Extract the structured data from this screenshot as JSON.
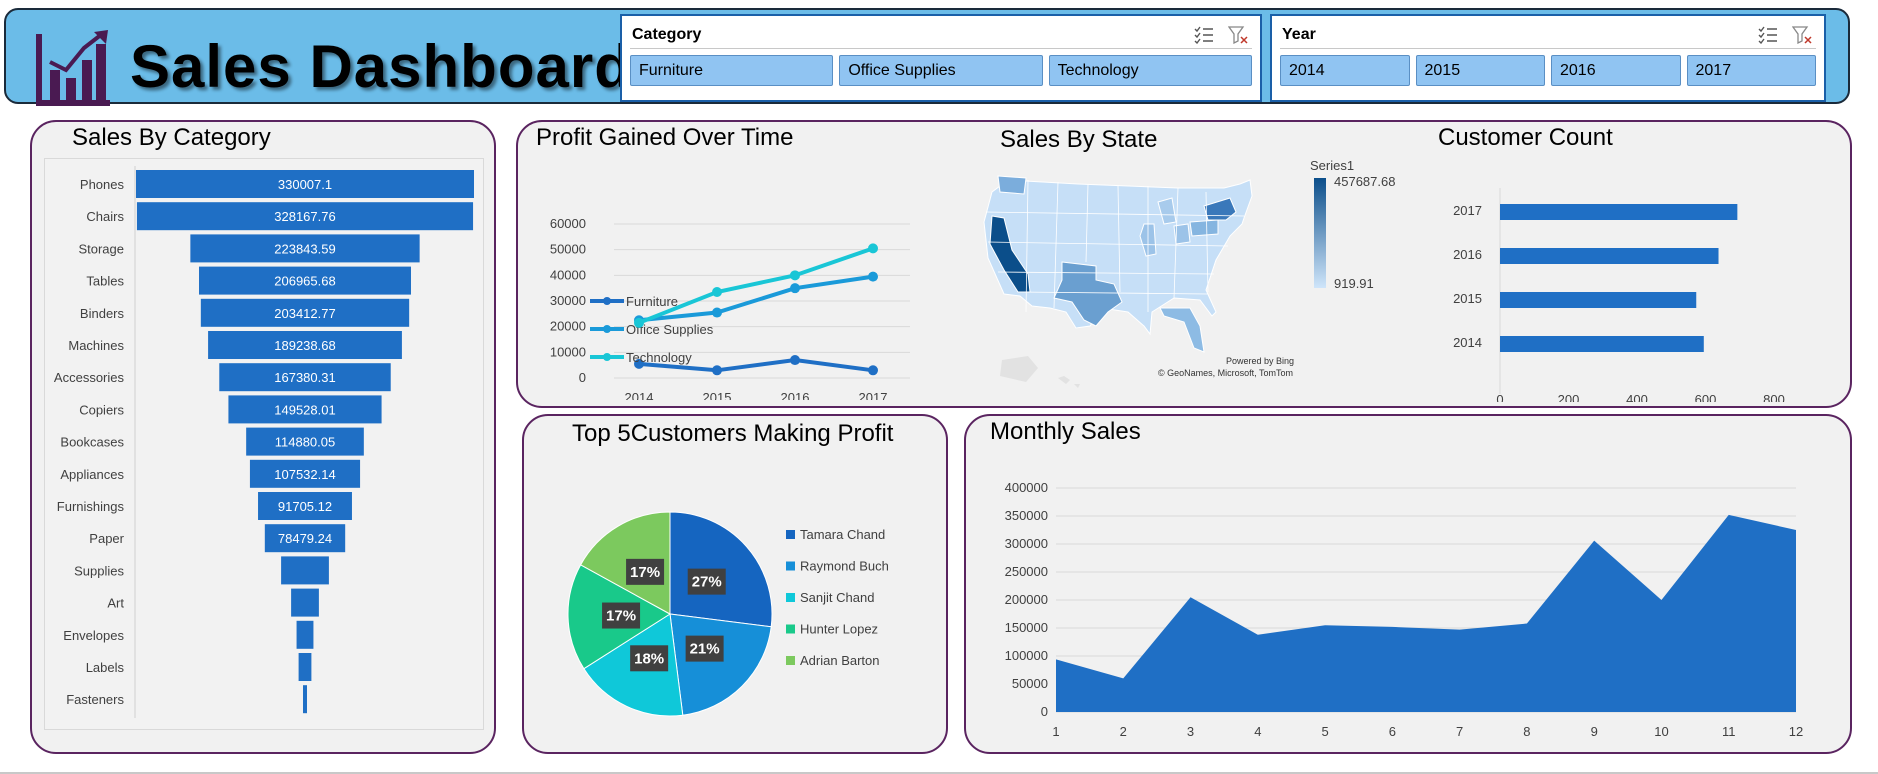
{
  "header": {
    "title": "Sales Dashboard"
  },
  "slicers": {
    "category": {
      "title": "Category",
      "items": [
        "Furniture",
        "Office Supplies",
        "Technology"
      ]
    },
    "year": {
      "title": "Year",
      "items": [
        "2014",
        "2015",
        "2016",
        "2017"
      ]
    }
  },
  "colors": {
    "primary": "#1f6fc5",
    "banner": "#6bbce8",
    "panel_border": "#5a2460",
    "slicer_item": "#90c4f2"
  },
  "map": {
    "legend_title": "Series1",
    "max_label": "457687.68",
    "min_label": "919.91",
    "credit_line1": "Powered by Bing",
    "credit_line2": "© GeoNames, Microsoft, TomTom"
  },
  "chart_data": [
    {
      "type": "bar",
      "id": "sales_by_category",
      "title": "Sales By Category",
      "orientation": "horizontal-funnel",
      "categories": [
        "Phones",
        "Chairs",
        "Storage",
        "Tables",
        "Binders",
        "Machines",
        "Accessories",
        "Copiers",
        "Bookcases",
        "Appliances",
        "Furnishings",
        "Paper",
        "Supplies",
        "Art",
        "Envelopes",
        "Labels",
        "Fasteners"
      ],
      "values": [
        330007.1,
        328167.76,
        223843.59,
        206965.68,
        203412.77,
        189238.68,
        167380.31,
        149528.01,
        114880.05,
        107532.14,
        91705.12,
        78479.24,
        46673.54,
        27118.79,
        16476.4,
        12486.31,
        3024.28
      ],
      "data_labels": [
        "330007.1",
        "328167.76",
        "223843.59",
        "206965.68",
        "203412.77",
        "189238.68",
        "167380.31",
        "149528.01",
        "114880.05",
        "107532.14",
        "91705.12",
        "78479.24",
        "",
        "",
        "",
        "",
        ""
      ]
    },
    {
      "type": "line",
      "id": "profit_over_time",
      "title": "Profit Gained Over Time",
      "x": [
        "2014",
        "2015",
        "2016",
        "2017"
      ],
      "series": [
        {
          "name": "Furniture",
          "values": [
            5500,
            3000,
            7000,
            3000
          ],
          "color": "#1f6fc5"
        },
        {
          "name": "Office Supplies",
          "values": [
            22500,
            25500,
            35000,
            39500
          ],
          "color": "#1a9ad9"
        },
        {
          "name": "Technology",
          "values": [
            21500,
            33500,
            40000,
            50500
          ],
          "color": "#19c6d6"
        }
      ],
      "ylim": [
        0,
        60000
      ],
      "yticks": [
        "0",
        "10000",
        "20000",
        "30000",
        "40000",
        "50000",
        "60000"
      ]
    },
    {
      "type": "map",
      "id": "sales_by_state",
      "title": "Sales By State"
    },
    {
      "type": "bar",
      "id": "customer_count",
      "title": "Customer Count",
      "orientation": "horizontal",
      "categories": [
        "2017",
        "2016",
        "2015",
        "2014"
      ],
      "values": [
        693,
        638,
        573,
        595
      ],
      "xlim": [
        0,
        800
      ],
      "xticks": [
        "0",
        "200",
        "400",
        "600",
        "800"
      ]
    },
    {
      "type": "pie",
      "id": "top_customers",
      "title": "Top 5Customers Making Profit",
      "labels": [
        "Tamara Chand",
        "Raymond Buch",
        "Sanjit Chand",
        "Hunter Lopez",
        "Adrian Barton"
      ],
      "values": [
        27,
        21,
        18,
        17,
        17
      ],
      "data_labels": [
        "27%",
        "21%",
        "18%",
        "17%",
        "17%"
      ],
      "colors": [
        "#1565c0",
        "#168fd8",
        "#0fc8d9",
        "#19c98a",
        "#7cc95e"
      ]
    },
    {
      "type": "area",
      "id": "monthly_sales",
      "title": "Monthly Sales",
      "x": [
        "1",
        "2",
        "3",
        "4",
        "5",
        "6",
        "7",
        "8",
        "9",
        "10",
        "11",
        "12"
      ],
      "values": [
        94000,
        60000,
        205000,
        138000,
        155000,
        152000,
        147000,
        158000,
        306000,
        200000,
        352000,
        325000
      ],
      "ylim": [
        0,
        400000
      ],
      "yticks": [
        "0",
        "50000",
        "100000",
        "150000",
        "200000",
        "250000",
        "300000",
        "350000",
        "400000"
      ]
    }
  ]
}
